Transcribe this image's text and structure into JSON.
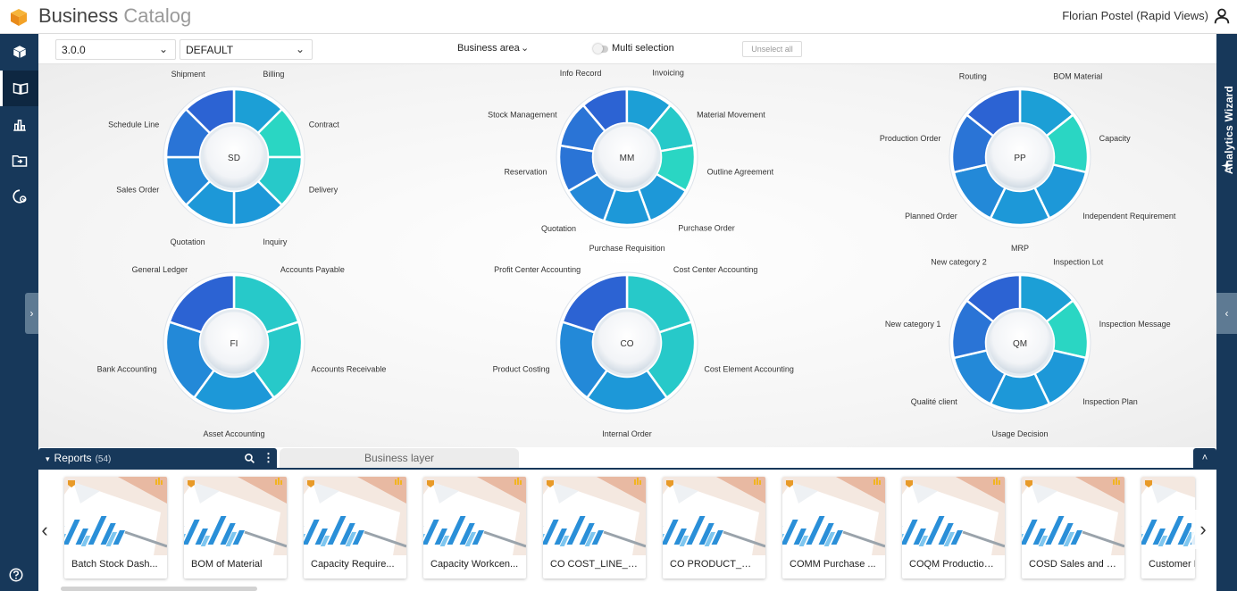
{
  "header": {
    "title_main": "Business",
    "title_light": "Catalog",
    "user_name": "Florian Postel (Rapid Views)"
  },
  "nav": {
    "icons": [
      "cube-icon",
      "book-icon",
      "chart-icon",
      "folder-icon",
      "settings-icon"
    ],
    "help_icon": "help-icon"
  },
  "toolbar": {
    "version": "3.0.0",
    "profile": "DEFAULT",
    "business_area": "Business area",
    "multi_selection": "Multi selection",
    "unselect_all": "Unselect all"
  },
  "right_panel": {
    "label": "Analytics Wizard"
  },
  "colors": {
    "nav_bg": "#17385a",
    "segment_dark": "#2f6fd6",
    "segment_mid": "#1c9fd6",
    "segment_teal": "#29d1c4"
  },
  "wheels": [
    {
      "center": "SD",
      "segments": [
        "Billing",
        "Contract",
        "Delivery",
        "Inquiry",
        "Quotation",
        "Sales Order",
        "Schedule Line",
        "Shipment"
      ]
    },
    {
      "center": "MM",
      "segments": [
        "Info Record",
        "Invoicing",
        "Material Movement",
        "Outline Agreement",
        "Purchase Order",
        "Purchase Requisition",
        "Quotation",
        "Reservation",
        "Stock Management"
      ]
    },
    {
      "center": "PP",
      "segments": [
        "BOM Material",
        "Capacity",
        "Independent Requirement",
        "MRP",
        "Planned Order",
        "Production Order",
        "Routing"
      ]
    },
    {
      "center": "FI",
      "segments": [
        "Accounts Payable",
        "Accounts Receivable",
        "Asset Accounting",
        "Bank Accounting",
        "General Ledger"
      ]
    },
    {
      "center": "CO",
      "segments": [
        "Cost Center Accounting",
        "Cost Element Accounting",
        "Internal Order",
        "Product Costing",
        "Profit Center Accounting"
      ]
    },
    {
      "center": "QM",
      "segments": [
        "Inspection Lot",
        "Inspection Message",
        "Inspection Plan",
        "Usage Decision",
        "Qualité client",
        "New category 1",
        "New category 2"
      ]
    }
  ],
  "reports": {
    "tab_label": "Reports",
    "count": "(54)",
    "business_layer_tab": "Business layer",
    "cards": [
      "Batch Stock Dash...",
      "BOM of Material",
      "Capacity Require...",
      "Capacity Workcen...",
      "CO COST_LINE_IT...",
      "CO PRODUCT_CO...",
      "COMM Purchase ...",
      "COQM Production ...",
      "COSD Sales and c...",
      "Customer Billing"
    ]
  }
}
